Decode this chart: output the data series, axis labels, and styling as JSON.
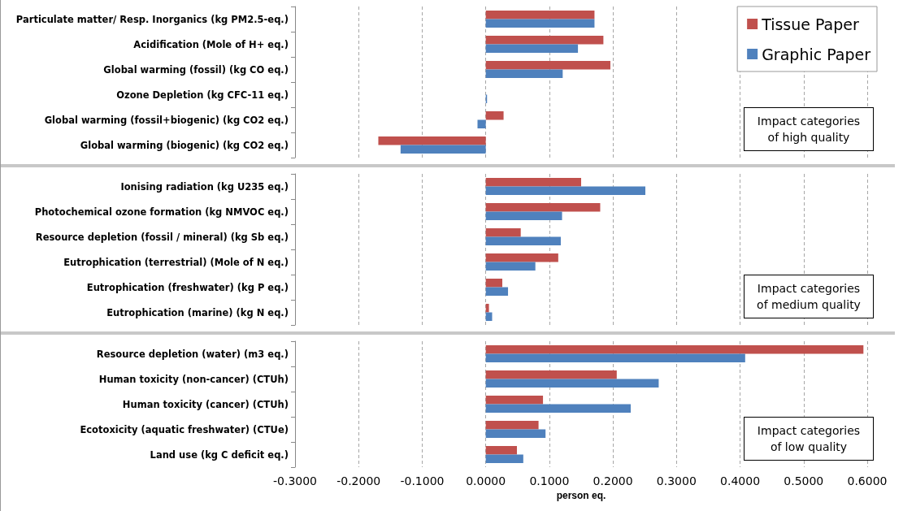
{
  "chart_data": [
    {
      "type": "bar",
      "orientation": "horizontal",
      "categories": [
        "Particulate matter/ Resp. Inorganics (kg PM2.5-eq.)",
        "Acidification (Mole of H+ eq.)",
        "Global warming (fossil) (kg CO eq.)",
        "Ozone Depletion (kg CFC-11 eq.)",
        "Global warming (fossil+biogenic) (kg CO2 eq.)",
        "Global warming (biogenic) (kg CO2 eq.)"
      ],
      "series": [
        {
          "name": "Tissue Paper",
          "color": "#c0504d",
          "values": [
            0.171,
            0.185,
            0.196,
            0,
            0.028,
            -0.169
          ]
        },
        {
          "name": "Graphic Paper",
          "color": "#4f81bd",
          "values": [
            0.171,
            0.145,
            0.121,
            0.002,
            -0.013,
            -0.134
          ]
        }
      ],
      "xlim": [
        -0.3,
        0.6
      ],
      "xticks": [
        -0.3,
        -0.2,
        -0.1,
        0,
        0.1,
        0.2,
        0.3,
        0.4,
        0.5,
        0.6
      ],
      "grid": "x",
      "legend": "top right",
      "tick_labels": "y",
      "annotations": [
        "Impact categories of high quality"
      ]
    },
    {
      "type": "bar",
      "orientation": "horizontal",
      "categories": [
        "Ionising radiation (kg U235 eq.)",
        "Photochemical ozone formation (kg NMVOC eq.)",
        "Resource depletion (fossil / mineral) (kg Sb eq.)",
        "Eutrophication (terrestrial) (Mole of N eq.)",
        "Eutrophication (freshwater) (kg P eq.)",
        "Eutrophication (marine) (kg N eq.)"
      ],
      "series": [
        {
          "color": "#c0504d",
          "values": [
            0.15,
            0.18,
            0.055,
            0.114,
            0.026,
            0.005
          ]
        },
        {
          "color": "#4f81bd",
          "values": [
            0.251,
            0.12,
            0.118,
            0.078,
            0.035,
            0.01
          ]
        }
      ],
      "xlim": [
        -0.3,
        0.6
      ],
      "xticks": [
        -0.3,
        -0.2,
        -0.1,
        0,
        0.1,
        0.2,
        0.3,
        0.4,
        0.5,
        0.6
      ],
      "grid": "x",
      "tick_labels": "y",
      "annotations": [
        "Impact categories of medium quality"
      ]
    },
    {
      "type": "bar",
      "orientation": "horizontal",
      "categories": [
        "Resource depletion (water) (m3 eq.)",
        "Human toxicity (non-cancer) (CTUh)",
        "Human toxicity (cancer) (CTUh)",
        "Ecotoxicity (aquatic freshwater) (CTUe)",
        "Land use (kg C deficit eq.)"
      ],
      "series": [
        {
          "color": "#c0504d",
          "values": [
            0.594,
            0.206,
            0.09,
            0.083,
            0.049
          ]
        },
        {
          "color": "#4f81bd",
          "values": [
            0.408,
            0.272,
            0.228,
            0.094,
            0.059
          ]
        }
      ],
      "xlim": [
        -0.3,
        0.6
      ],
      "xticks": [
        {
          "value": -0.3,
          "label": "-0.3000"
        },
        {
          "value": -0.2,
          "label": "-0.2000"
        },
        {
          "value": -0.1,
          "label": "-0.1000"
        },
        {
          "value": 0,
          "label": "0.0000"
        },
        {
          "value": 0.1,
          "label": "0.1000"
        },
        {
          "value": 0.2,
          "label": "0.2000"
        },
        {
          "value": 0.3,
          "label": "0.3000"
        },
        {
          "value": 0.4,
          "label": "0.4000"
        },
        {
          "value": 0.5,
          "label": "0.5000"
        },
        {
          "value": 0.6,
          "label": "0.6000"
        }
      ],
      "grid": "x",
      "xlabel": "person eq.",
      "annotations": [
        "Impact categories of low quality"
      ]
    }
  ]
}
